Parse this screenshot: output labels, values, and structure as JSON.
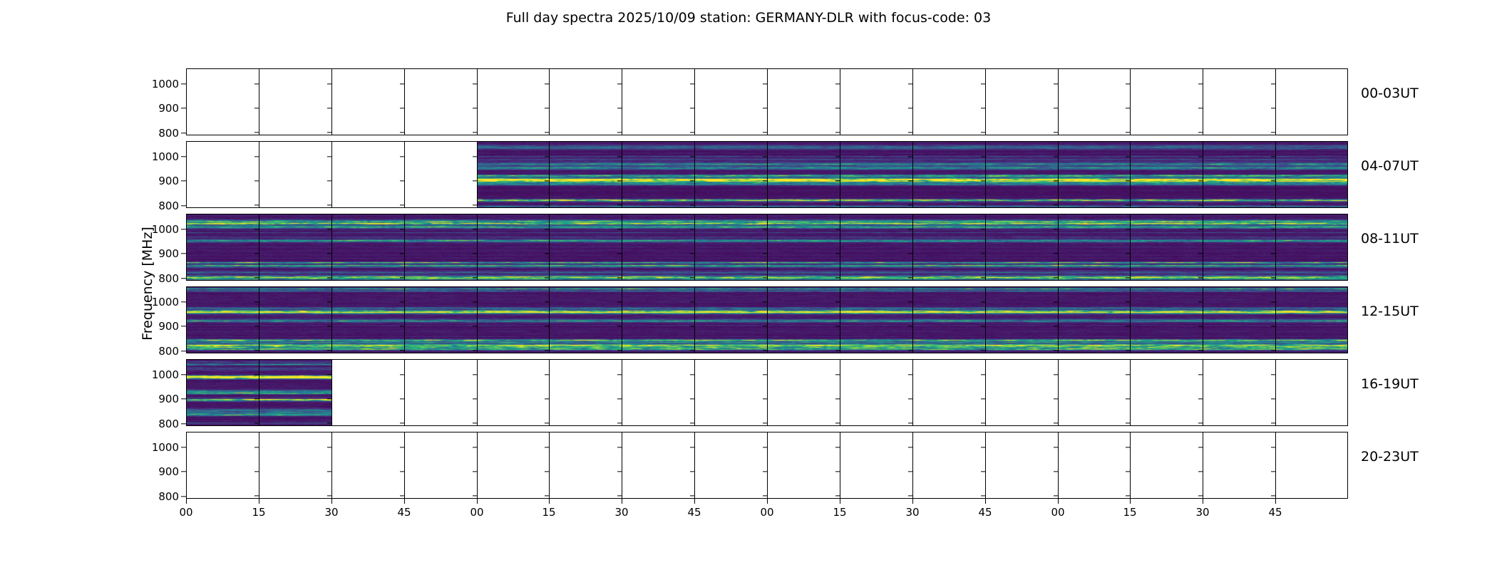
{
  "title": "Full day spectra 2025/10/09 station: GERMANY-DLR with focus-code: 03",
  "chart_data": {
    "type": "heatmap",
    "title": "Full day spectra 2025/10/09 station: GERMANY-DLR with focus-code: 03",
    "ylabel": "Frequency [MHz]",
    "colormap": "viridis",
    "y_tick_labels": [
      "1000",
      "900",
      "800"
    ],
    "y_range_mhz": [
      790,
      1060
    ],
    "x_tick_labels": [
      "00",
      "15",
      "30",
      "45",
      "00",
      "15",
      "30",
      "45",
      "00",
      "15",
      "30",
      "45",
      "00",
      "15",
      "30",
      "45"
    ],
    "x_units": "minutes of hour",
    "segments_per_row": 16,
    "minutes_per_segment": 15,
    "legend": "none",
    "rows": [
      {
        "label": "00-03UT",
        "data_segments": null,
        "coverage": "no data (blank panels)"
      },
      {
        "label": "04-07UT",
        "data_segments": [
          4,
          16
        ],
        "coverage": "blank first hour, spectrogram data afterwards"
      },
      {
        "label": "08-11UT",
        "data_segments": [
          0,
          16
        ],
        "coverage": "full spectrogram data"
      },
      {
        "label": "12-15UT",
        "data_segments": [
          0,
          16
        ],
        "coverage": "full spectrogram data"
      },
      {
        "label": "16-19UT",
        "data_segments": [
          0,
          2
        ],
        "coverage": "spectrogram data first 30 min only"
      },
      {
        "label": "20-23UT",
        "data_segments": null,
        "coverage": "no data (blank panels)"
      }
    ],
    "viridis_stops": [
      "#440154",
      "#46327e",
      "#365c8d",
      "#277f8e",
      "#1fa187",
      "#4ac16d",
      "#a0da39",
      "#fde725"
    ]
  }
}
